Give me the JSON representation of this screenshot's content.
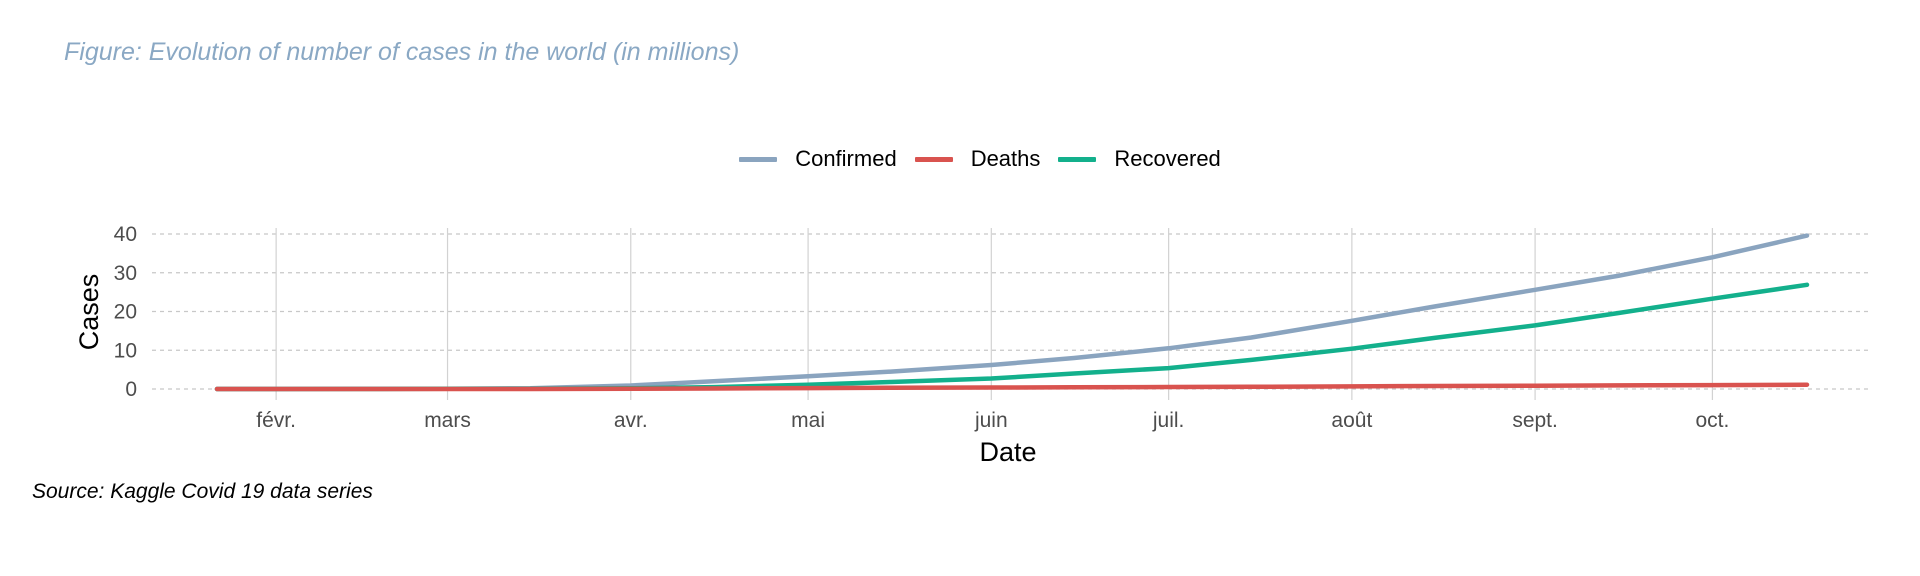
{
  "title": "Figure: Evolution of number of cases in the world (in millions)",
  "caption": "Source: Kaggle Covid 19 data series",
  "legend": [
    {
      "label": "Confirmed",
      "color": "#8aa4bf"
    },
    {
      "label": "Deaths",
      "color": "#d9534f"
    },
    {
      "label": "Recovered",
      "color": "#13b08c"
    }
  ],
  "chart_data": {
    "type": "line",
    "xlabel": "Date",
    "ylabel": "Cases",
    "xlim": [
      "2020-01-22",
      "2020-10-17"
    ],
    "ylim": [
      0,
      40
    ],
    "yticks": [
      0,
      10,
      20,
      30,
      40
    ],
    "xticks": [
      {
        "date": "2020-02-01",
        "label": "févr."
      },
      {
        "date": "2020-03-01",
        "label": "mars"
      },
      {
        "date": "2020-04-01",
        "label": "avr."
      },
      {
        "date": "2020-05-01",
        "label": "mai"
      },
      {
        "date": "2020-06-01",
        "label": "juin"
      },
      {
        "date": "2020-07-01",
        "label": "juil."
      },
      {
        "date": "2020-08-01",
        "label": "août"
      },
      {
        "date": "2020-09-01",
        "label": "sept."
      },
      {
        "date": "2020-10-01",
        "label": "oct."
      }
    ],
    "grid": true,
    "legend_position": "top",
    "x": [
      "2020-01-22",
      "2020-02-01",
      "2020-02-15",
      "2020-03-01",
      "2020-03-15",
      "2020-04-01",
      "2020-04-15",
      "2020-05-01",
      "2020-05-15",
      "2020-06-01",
      "2020-06-15",
      "2020-07-01",
      "2020-07-15",
      "2020-08-01",
      "2020-08-15",
      "2020-09-01",
      "2020-09-15",
      "2020-10-01",
      "2020-10-17"
    ],
    "series": [
      {
        "name": "Confirmed",
        "color": "#8aa4bf",
        "values": [
          0.0,
          0.01,
          0.07,
          0.09,
          0.17,
          0.9,
          2.0,
          3.3,
          4.5,
          6.2,
          8.0,
          10.5,
          13.3,
          17.6,
          21.3,
          25.6,
          29.2,
          34.0,
          39.6
        ]
      },
      {
        "name": "Deaths",
        "color": "#d9534f",
        "values": [
          0.0,
          0.0,
          0.0,
          0.0,
          0.01,
          0.05,
          0.13,
          0.24,
          0.31,
          0.38,
          0.44,
          0.52,
          0.58,
          0.68,
          0.77,
          0.85,
          0.93,
          1.01,
          1.1
        ]
      },
      {
        "name": "Recovered",
        "color": "#13b08c",
        "values": [
          0.0,
          0.0,
          0.01,
          0.04,
          0.08,
          0.18,
          0.5,
          1.1,
          1.8,
          2.7,
          4.0,
          5.4,
          7.5,
          10.4,
          13.2,
          16.4,
          19.6,
          23.3,
          26.9
        ]
      }
    ]
  }
}
